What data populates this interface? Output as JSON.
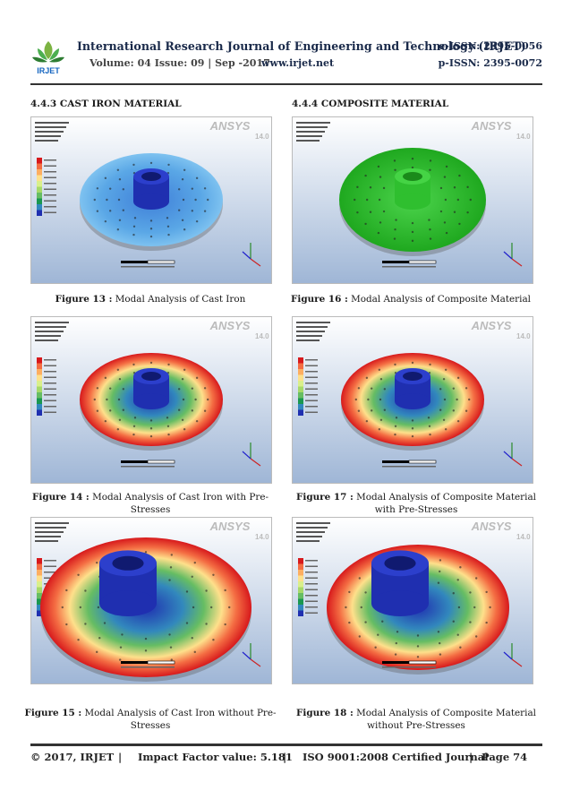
{
  "header": {
    "title": "International Research Journal of Engineering and Technology (IRJET)",
    "eissn": "e-ISSN: 2395-0056",
    "volume": "Volume: 04 Issue: 09 | Sep -2017",
    "website": "www.irjet.net",
    "pissn": "p-ISSN: 2395-0072",
    "logo_text": "IRJET"
  },
  "sections": {
    "left": "4.4.3 CAST IRON MATERIAL",
    "right": "4.4.4 COMPOSITE  MATERIAL"
  },
  "figures": [
    {
      "label": "Figure 13 :",
      "text": " Modal Analysis of Cast Iron"
    },
    {
      "label": "Figure 16 :",
      "text": " Modal Analysis of Composite Material"
    },
    {
      "label": "Figure 14 :",
      "text": " Modal Analysis of Cast Iron with Pre-Stresses"
    },
    {
      "label": "Figure 17 :",
      "text": " Modal Analysis of Composite Material with Pre-Stresses"
    },
    {
      "label": "Figure 15 :",
      "text": " Modal Analysis of Cast Iron without Pre-Stresses"
    },
    {
      "label": "Figure 18 :",
      "text": " Modal Analysis of Composite Material without Pre-Stresses"
    }
  ],
  "ansys": {
    "brand": "ANSYS",
    "version": "14.0"
  },
  "footer": {
    "copyright": "© 2017, IRJET",
    "sep1": "|",
    "impact": "Impact Factor value: 5.181",
    "sep2": "|",
    "iso": "ISO 9001:2008 Certified Journal",
    "sep3": "|",
    "page": "Page 74"
  },
  "colors": {
    "header_navy": "#1a2a4a",
    "ansys_bg_top": "#ffffff",
    "ansys_bg_bottom": "#9fb6d6"
  }
}
